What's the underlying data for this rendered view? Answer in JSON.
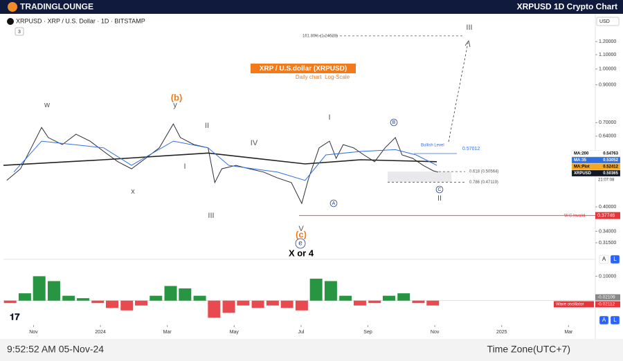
{
  "header": {
    "logo": "TRADINGLOUNGE",
    "title": "XRPUSD 1D Crypto Chart"
  },
  "chart_data": {
    "type": "line",
    "symbol": "XRPUSD · XRP / U.S. Dollar · 1D · BITSTAMP",
    "indicator_count": 3,
    "title": "XRP / U.S.dollar (XRPUSD)",
    "subtitle": "Daily chart  Log-Scale",
    "currency": "USD",
    "log_scale": true,
    "grid": false,
    "xlim": [
      -2.9,
      14.8
    ],
    "xticks": [
      {
        "value": -2,
        "label": "Nov"
      },
      {
        "value": 0,
        "label": "2024"
      },
      {
        "value": 2,
        "label": "Mar"
      },
      {
        "value": 4,
        "label": "May"
      },
      {
        "value": 6,
        "label": "Jul"
      },
      {
        "value": 8,
        "label": "Sep"
      },
      {
        "value": 10,
        "label": "Nov"
      },
      {
        "value": 12,
        "label": "2025"
      },
      {
        "value": 14,
        "label": "Mar"
      }
    ],
    "ylim": [
      0.29,
      1.43
    ],
    "yticks": [
      {
        "value": 1.2,
        "label": "1.20000"
      },
      {
        "value": 1.1,
        "label": "1.10000"
      },
      {
        "value": 1.0,
        "label": "1.00000"
      },
      {
        "value": 0.9,
        "label": "0.90000"
      },
      {
        "value": 0.7,
        "label": "0.70000"
      },
      {
        "value": 0.64,
        "label": "0.64000"
      },
      {
        "value": 0.4,
        "label": "0.40000"
      },
      {
        "value": 0.34,
        "label": "0.34000"
      },
      {
        "value": 0.315,
        "label": "0.31500"
      }
    ],
    "series": [
      {
        "name": "XRPUSD",
        "color": "#2a2e39",
        "tag_value": 0.50365,
        "x": [
          -2.8,
          -2.39,
          -2.07,
          -1.76,
          -1.56,
          -1.14,
          -0.73,
          -0.31,
          0.1,
          0.52,
          0.93,
          1.35,
          1.76,
          2.18,
          2.39,
          2.8,
          3.22,
          3.42,
          3.63,
          4.05,
          4.46,
          4.88,
          5.29,
          5.71,
          6.02,
          6.22,
          6.54,
          6.85,
          7.05,
          7.26,
          7.57,
          7.88,
          8.2,
          8.51,
          8.82,
          9.02,
          9.34,
          9.65,
          9.96,
          10.1
        ],
        "values": [
          0.477,
          0.515,
          0.592,
          0.678,
          0.634,
          0.605,
          0.648,
          0.619,
          0.578,
          0.54,
          0.515,
          0.552,
          0.592,
          0.694,
          0.634,
          0.605,
          0.592,
          0.47,
          0.515,
          0.527,
          0.515,
          0.504,
          0.485,
          0.47,
          0.409,
          0.481,
          0.592,
          0.619,
          0.552,
          0.605,
          0.592,
          0.565,
          0.54,
          0.592,
          0.634,
          0.565,
          0.552,
          0.527,
          0.508,
          0.504
        ]
      },
      {
        "name": "MA:200",
        "color": "#222222",
        "tag_value": 0.54763,
        "x": [
          -2.9,
          0.1,
          3.22,
          6.12,
          7.78,
          10.06
        ],
        "values": [
          0.527,
          0.547,
          0.572,
          0.532,
          0.547,
          0.54
        ]
      },
      {
        "name": "MA:35",
        "color": "#2f6fe0",
        "tag_value": 0.53052,
        "x": [
          -2.59,
          -1.76,
          0.1,
          0.93,
          2.18,
          3.22,
          3.84,
          5.29,
          6.12,
          6.74,
          7.78,
          8.82,
          9.44,
          10.06
        ],
        "values": [
          0.504,
          0.619,
          0.592,
          0.527,
          0.619,
          0.592,
          0.527,
          0.504,
          0.477,
          0.565,
          0.578,
          0.585,
          0.565,
          0.527
        ]
      }
    ],
    "extra_tags": [
      {
        "name": "MA:Plot",
        "value": 0.52412,
        "color": "#f5a623"
      }
    ],
    "countdown": "21:07:08",
    "levels": [
      {
        "text": "161.80% (1.24628)",
        "price": 1.24628
      },
      {
        "text": "0.618 (0.50564)",
        "price": 0.50564
      },
      {
        "text": "0.786 (0.47119)",
        "price": 0.47119
      },
      {
        "text": "Bullish Level",
        "price": 0.57012
      },
      {
        "text": "W.C.Invalid",
        "price": 0.37746
      }
    ],
    "annotations": [
      "w",
      "x",
      "y",
      "(b)",
      "II",
      "I",
      "III",
      "IV",
      "V",
      "(c)",
      "e",
      "X or 4",
      "A",
      "B",
      "C",
      "I",
      "II",
      "III"
    ],
    "oscillator": {
      "type": "bar",
      "name": "Wave oscillator",
      "pos_color": "#0f8a2e",
      "neg_color": "#e5363c",
      "ylim": [
        -0.1,
        0.155
      ],
      "yticks": [
        {
          "value": 0.1,
          "label": "0.10000"
        }
      ],
      "last_values": [
        -0.02109,
        -0.02112
      ],
      "x": [
        -2.7,
        -2.26,
        -1.83,
        -1.39,
        -0.95,
        -0.52,
        -0.08,
        0.35,
        0.79,
        1.22,
        1.66,
        2.1,
        2.53,
        2.97,
        3.4,
        3.84,
        4.27,
        4.71,
        5.15,
        5.58,
        6.02,
        6.45,
        6.89,
        7.33,
        7.76,
        8.2,
        8.63,
        9.07,
        9.51,
        9.94
      ],
      "values": [
        -0.01,
        0.03,
        0.1,
        0.08,
        0.02,
        0.01,
        -0.01,
        -0.03,
        -0.04,
        -0.02,
        0.02,
        0.06,
        0.05,
        0.02,
        -0.07,
        -0.05,
        -0.02,
        -0.03,
        -0.02,
        -0.03,
        -0.04,
        0.09,
        0.08,
        0.02,
        -0.02,
        -0.01,
        0.02,
        0.03,
        -0.01,
        -0.02
      ]
    }
  },
  "buttons": [
    "A",
    "L"
  ],
  "footer": {
    "time": "9:52:52 AM 05-Nov-24",
    "timezone": "Time Zone(UTC+7)"
  }
}
